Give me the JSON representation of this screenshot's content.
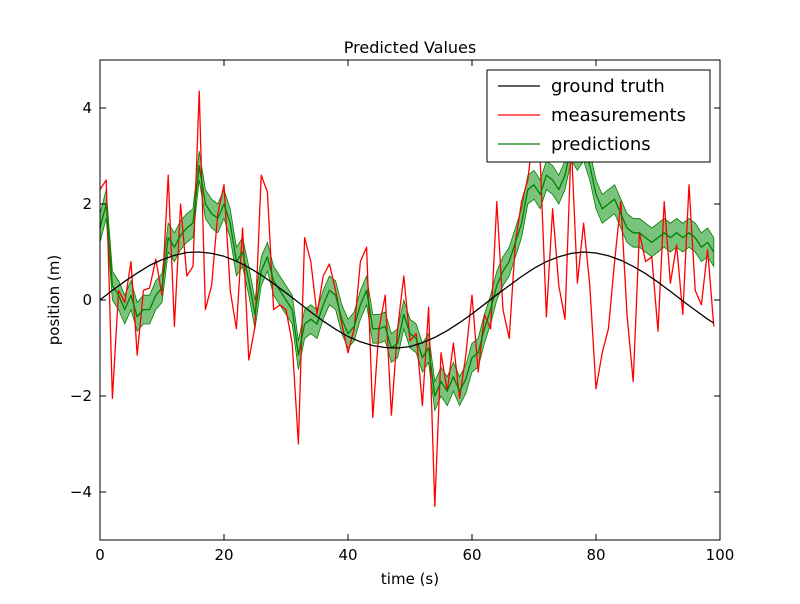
{
  "chart_data": {
    "type": "line",
    "title": "Predicted Values",
    "xlabel": "time (s)",
    "ylabel": "position (m)",
    "xlim": [
      0,
      100
    ],
    "ylim": [
      -5,
      5
    ],
    "xticks": [
      0,
      20,
      40,
      60,
      80,
      100
    ],
    "yticks": [
      -4,
      -2,
      0,
      2,
      4
    ],
    "xtick_labels": [
      "0",
      "20",
      "40",
      "60",
      "80",
      "100"
    ],
    "ytick_labels": [
      "−4",
      "−2",
      "0",
      "2",
      "4"
    ],
    "grid": false,
    "legend_position": "top-right",
    "colors": {
      "ground_truth": "#000000",
      "measurements": "#ff0000",
      "predictions": "#008000",
      "band_fill": "#4caf50"
    },
    "series": [
      {
        "name": "ground truth",
        "x": [
          0,
          2,
          4,
          6,
          8,
          10,
          12,
          14,
          16,
          18,
          20,
          22,
          24,
          26,
          28,
          30,
          32,
          34,
          36,
          38,
          40,
          42,
          44,
          46,
          48,
          50,
          52,
          54,
          56,
          58,
          60,
          62,
          64,
          66,
          68,
          70,
          72,
          74,
          76,
          78,
          80,
          82,
          84,
          86,
          88,
          90,
          92,
          94,
          96,
          98,
          99
        ],
        "y": [
          0.0,
          0.2,
          0.39,
          0.56,
          0.72,
          0.84,
          0.93,
          0.99,
          1.0,
          0.97,
          0.91,
          0.81,
          0.68,
          0.52,
          0.34,
          0.15,
          -0.05,
          -0.25,
          -0.44,
          -0.61,
          -0.76,
          -0.87,
          -0.95,
          -0.99,
          -1.0,
          -0.97,
          -0.89,
          -0.78,
          -0.64,
          -0.47,
          -0.29,
          -0.09,
          0.11,
          0.3,
          0.49,
          0.66,
          0.8,
          0.9,
          0.97,
          1.0,
          0.98,
          0.92,
          0.83,
          0.7,
          0.55,
          0.37,
          0.18,
          -0.02,
          -0.21,
          -0.4,
          -0.48
        ]
      },
      {
        "name": "measurements",
        "x": [
          0,
          1,
          2,
          3,
          4,
          5,
          6,
          7,
          8,
          9,
          10,
          11,
          12,
          13,
          14,
          15,
          16,
          17,
          18,
          19,
          20,
          21,
          22,
          23,
          24,
          25,
          26,
          27,
          28,
          29,
          30,
          31,
          32,
          33,
          34,
          35,
          36,
          37,
          38,
          39,
          40,
          41,
          42,
          43,
          44,
          45,
          46,
          47,
          48,
          49,
          50,
          51,
          52,
          53,
          54,
          55,
          56,
          57,
          58,
          59,
          60,
          61,
          62,
          63,
          64,
          65,
          66,
          67,
          68,
          69,
          70,
          71,
          72,
          73,
          74,
          75,
          76,
          77,
          78,
          79,
          80,
          81,
          82,
          83,
          84,
          85,
          86,
          87,
          88,
          89,
          90,
          91,
          92,
          93,
          94,
          95,
          96,
          97,
          98,
          99
        ],
        "y": [
          2.3,
          2.5,
          -2.05,
          0.2,
          -0.05,
          0.8,
          -1.15,
          0.2,
          0.25,
          0.85,
          0.1,
          2.6,
          -0.55,
          2.0,
          0.5,
          0.7,
          4.35,
          -0.2,
          0.3,
          1.8,
          2.4,
          0.2,
          -0.6,
          1.5,
          -1.25,
          -0.55,
          2.6,
          2.25,
          -0.2,
          -0.1,
          -0.2,
          -0.9,
          -3.0,
          1.3,
          0.8,
          -0.3,
          0.5,
          0.75,
          0.2,
          -0.5,
          -1.1,
          -0.6,
          0.8,
          1.1,
          -2.45,
          -0.6,
          0.1,
          -2.4,
          -0.6,
          0.5,
          -0.85,
          -0.7,
          -2.2,
          -0.15,
          -4.3,
          -1.1,
          -1.9,
          -0.9,
          -2.05,
          -1.15,
          0.1,
          -1.5,
          -0.3,
          -0.6,
          2.05,
          -0.2,
          -0.8,
          1.2,
          2.05,
          2.5,
          3.6,
          2.9,
          -0.35,
          1.9,
          0.3,
          -0.4,
          3.3,
          0.35,
          1.6,
          0.3,
          -1.85,
          -1.1,
          -0.6,
          0.8,
          2.05,
          -0.3,
          -1.7,
          1.4,
          0.8,
          0.9,
          -0.65,
          2.05,
          0.35,
          1.15,
          -0.3,
          2.4,
          0.2,
          -0.1,
          1.05,
          -0.55
        ]
      },
      {
        "name": "predictions",
        "x": [
          0,
          1,
          2,
          3,
          4,
          5,
          6,
          7,
          8,
          9,
          10,
          11,
          12,
          13,
          14,
          15,
          16,
          17,
          18,
          19,
          20,
          21,
          22,
          23,
          24,
          25,
          26,
          27,
          28,
          29,
          30,
          31,
          32,
          33,
          34,
          35,
          36,
          37,
          38,
          39,
          40,
          41,
          42,
          43,
          44,
          45,
          46,
          47,
          48,
          49,
          50,
          51,
          52,
          53,
          54,
          55,
          56,
          57,
          58,
          59,
          60,
          61,
          62,
          63,
          64,
          65,
          66,
          67,
          68,
          69,
          70,
          71,
          72,
          73,
          74,
          75,
          76,
          77,
          78,
          79,
          80,
          81,
          82,
          83,
          84,
          85,
          86,
          87,
          88,
          89,
          90,
          91,
          92,
          93,
          94,
          95,
          96,
          97,
          98,
          99
        ],
        "y": [
          1.5,
          2.0,
          0.3,
          0.1,
          -0.2,
          0.1,
          -0.35,
          -0.2,
          -0.2,
          0.1,
          0.25,
          1.3,
          1.1,
          1.35,
          1.5,
          1.6,
          2.8,
          2.0,
          1.8,
          1.7,
          2.0,
          1.6,
          0.8,
          1.0,
          0.4,
          -0.3,
          0.6,
          0.9,
          0.4,
          0.2,
          0.0,
          -0.2,
          -1.15,
          -0.5,
          -0.4,
          -0.5,
          -0.1,
          0.2,
          0.1,
          -0.4,
          -0.7,
          -0.55,
          -0.1,
          0.2,
          -0.6,
          -0.6,
          -0.55,
          -1.0,
          -0.9,
          -0.3,
          -0.7,
          -0.8,
          -1.2,
          -1.0,
          -2.0,
          -1.7,
          -1.9,
          -1.6,
          -1.9,
          -1.65,
          -1.2,
          -1.1,
          -0.6,
          -0.2,
          0.3,
          0.6,
          0.8,
          1.2,
          1.6,
          2.3,
          2.4,
          2.2,
          2.6,
          2.5,
          2.3,
          2.6,
          3.2,
          3.0,
          3.2,
          2.8,
          2.2,
          1.9,
          2.0,
          2.1,
          1.8,
          1.5,
          1.4,
          1.4,
          1.3,
          1.2,
          1.3,
          1.4,
          1.3,
          1.4,
          1.3,
          1.4,
          1.3,
          1.1,
          1.2,
          1.0
        ],
        "band": 0.3
      }
    ]
  }
}
